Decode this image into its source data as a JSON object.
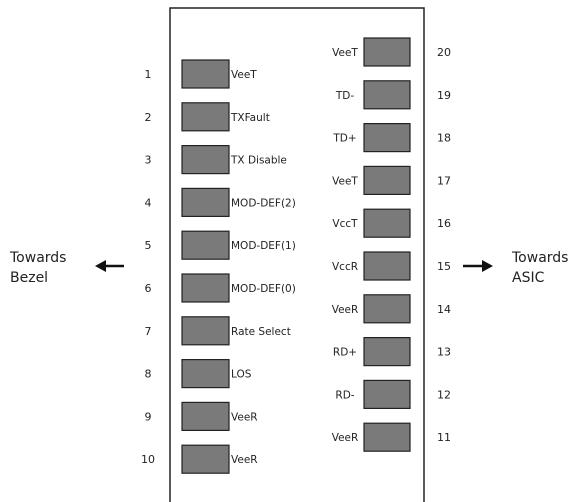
{
  "left_direction": [
    "Towards",
    "Bezel"
  ],
  "right_direction": [
    "Towards",
    "ASIC"
  ],
  "left_pins": [
    {
      "number": "1",
      "label": "VeeT"
    },
    {
      "number": "2",
      "label": "TXFault"
    },
    {
      "number": "3",
      "label": "TX Disable"
    },
    {
      "number": "4",
      "label": "MOD-DEF(2)"
    },
    {
      "number": "5",
      "label": "MOD-DEF(1)"
    },
    {
      "number": "6",
      "label": "MOD-DEF(0)"
    },
    {
      "number": "7",
      "label": "Rate Select"
    },
    {
      "number": "8",
      "label": "LOS"
    },
    {
      "number": "9",
      "label": "VeeR"
    },
    {
      "number": "10",
      "label": "VeeR"
    }
  ],
  "right_pins": [
    {
      "number": "20",
      "label": "VeeT"
    },
    {
      "number": "19",
      "label": "TD-"
    },
    {
      "number": "18",
      "label": "TD+"
    },
    {
      "number": "17",
      "label": "VeeT"
    },
    {
      "number": "16",
      "label": "VccT"
    },
    {
      "number": "15",
      "label": "VccR"
    },
    {
      "number": "14",
      "label": "VeeR"
    },
    {
      "number": "13",
      "label": "RD+"
    },
    {
      "number": "12",
      "label": "RD-"
    },
    {
      "number": "11",
      "label": "VeeR"
    }
  ],
  "colors": {
    "pad_fill": "#7a7a7a",
    "outline": "#222222"
  }
}
